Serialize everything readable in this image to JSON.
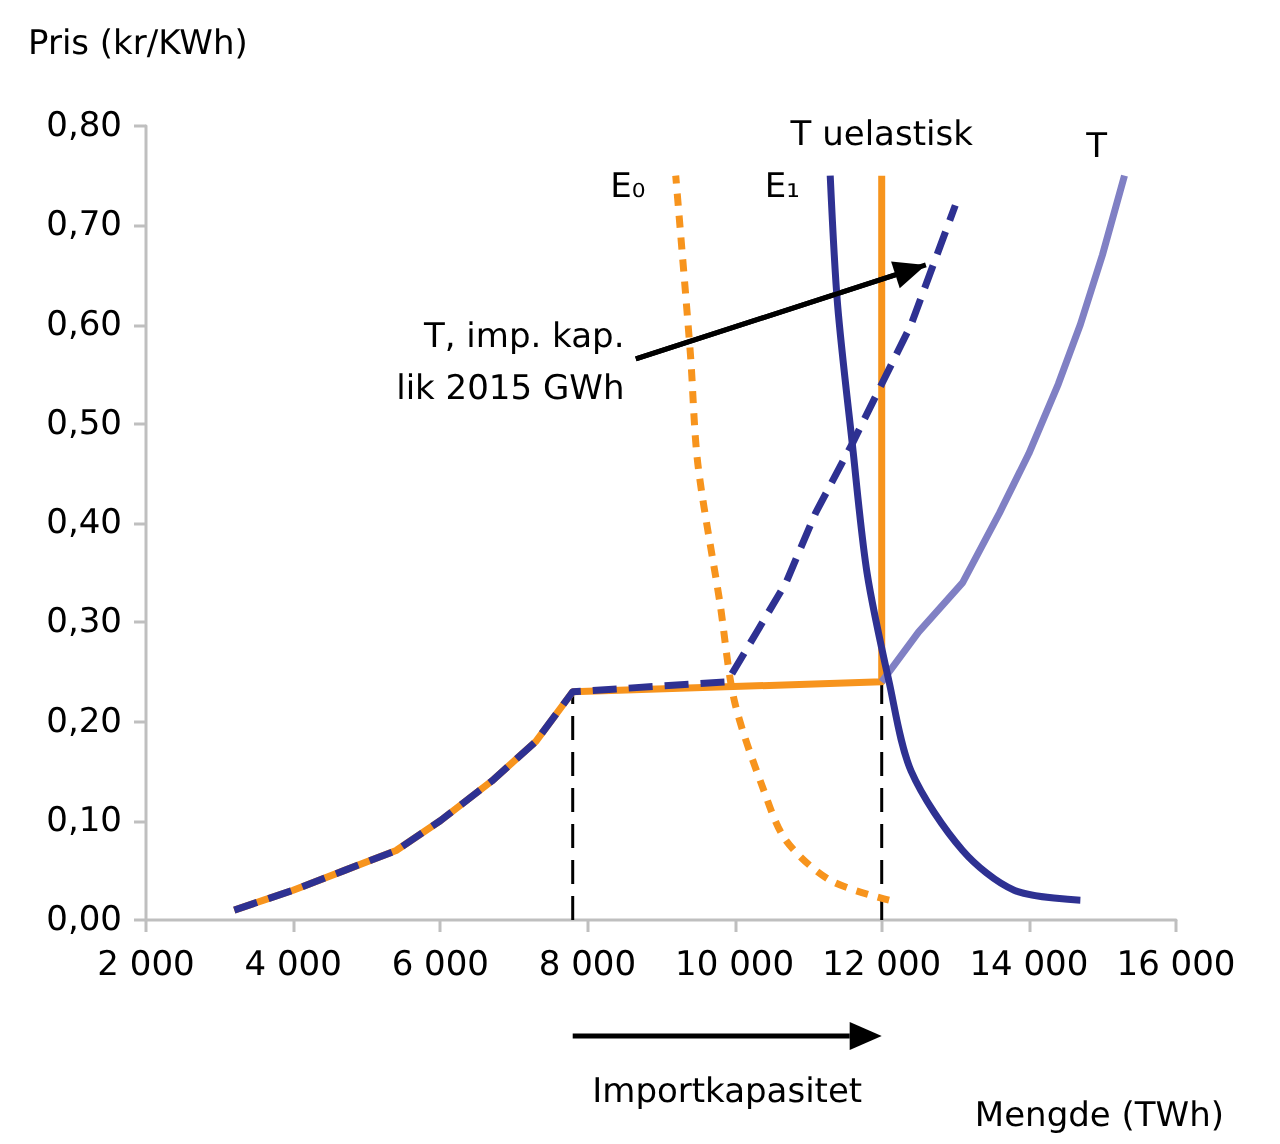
{
  "chart_data": {
    "type": "line",
    "xlabel": "Mengde (TWh)",
    "ylabel": "Pris (kr/KWh)",
    "xlim": [
      2000,
      16000
    ],
    "xticks": [
      {
        "value": 2000,
        "label": "2 000"
      },
      {
        "value": 4000,
        "label": "4 000"
      },
      {
        "value": 6000,
        "label": "6 000"
      },
      {
        "value": 8000,
        "label": "8 000"
      },
      {
        "value": 10000,
        "label": "10 000"
      },
      {
        "value": 12000,
        "label": "12 000"
      },
      {
        "value": 14000,
        "label": "14 000"
      },
      {
        "value": 16000,
        "label": "16 000"
      }
    ],
    "ylim": [
      0,
      0.8
    ],
    "yticks": [
      {
        "value": 0,
        "label": "0,00"
      },
      {
        "value": 0.1,
        "label": "0,10"
      },
      {
        "value": 0.2,
        "label": "0,20"
      },
      {
        "value": 0.3,
        "label": "0,30"
      },
      {
        "value": 0.4,
        "label": "0,40"
      },
      {
        "value": 0.5,
        "label": "0,50"
      },
      {
        "value": 0.6,
        "label": "0,60"
      },
      {
        "value": 0.7,
        "label": "0,70"
      },
      {
        "value": 0.8,
        "label": "0,80"
      }
    ],
    "grid": false,
    "legend": false,
    "marker": "none",
    "series": [
      {
        "name": "T uelastisk",
        "color": "#f7941d",
        "line_style": "solid",
        "x": [
          3200,
          3600,
          4000,
          4700,
          5400,
          6000,
          6700,
          7300,
          7800,
          12000,
          12000
        ],
        "values": [
          0.01,
          0.02,
          0.03,
          0.05,
          0.07,
          0.1,
          0.14,
          0.18,
          0.23,
          0.24,
          0.75
        ]
      },
      {
        "color": "#2e3192",
        "line_style": "dashed",
        "x": [
          3200,
          3600,
          4000,
          4700,
          5400,
          6000,
          6700,
          7300,
          7800,
          9900,
          10300,
          10700,
          11100,
          11600,
          12000,
          12400,
          13000
        ],
        "values": [
          0.01,
          0.02,
          0.03,
          0.05,
          0.07,
          0.1,
          0.14,
          0.18,
          0.23,
          0.24,
          0.29,
          0.34,
          0.41,
          0.48,
          0.54,
          0.6,
          0.72
        ]
      },
      {
        "name": "T",
        "color": "#8080c4",
        "line_style": "solid",
        "x": [
          12000,
          12500,
          13100,
          13600,
          14000,
          14400,
          14700,
          15000,
          15300
        ],
        "values": [
          0.24,
          0.29,
          0.34,
          0.41,
          0.47,
          0.54,
          0.6,
          0.67,
          0.75
        ]
      },
      {
        "name": "E₀",
        "color": "#f7941d",
        "line_style": "dotted",
        "x": [
          12100,
          11300,
          10700,
          10400,
          10000,
          9800,
          9500,
          9400,
          9200
        ],
        "values": [
          0.02,
          0.04,
          0.08,
          0.13,
          0.22,
          0.32,
          0.46,
          0.57,
          0.75
        ]
      },
      {
        "name": "E₁",
        "color": "#2e3192",
        "line_style": "solid",
        "x": [
          14700,
          13800,
          13100,
          12400,
          12100,
          11800,
          11600,
          11400,
          11300
        ],
        "values": [
          0.02,
          0.03,
          0.07,
          0.15,
          0.24,
          0.35,
          0.48,
          0.62,
          0.75
        ]
      },
      {
        "color": "#000000",
        "line_style": "dashed",
        "x": [
          7800,
          7800
        ],
        "values": [
          0,
          0.23
        ]
      },
      {
        "color": "#000000",
        "line_style": "dashed",
        "x": [
          12000,
          12000
        ],
        "values": [
          0,
          0.24
        ]
      }
    ],
    "annotations": [
      {
        "text": "T, imp. kap.\nlik 2015 GWh",
        "x": 12600,
        "y": 0.66
      },
      "Importkapasitet"
    ]
  }
}
